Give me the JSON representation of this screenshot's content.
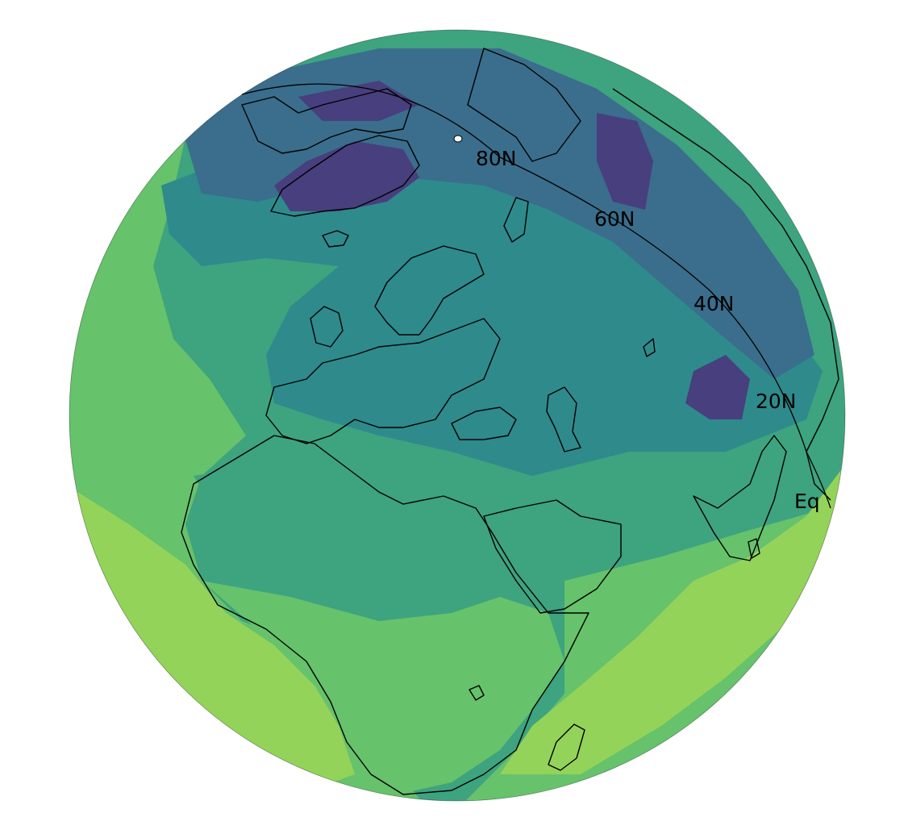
{
  "colors": {
    "very_high": "#483f7e",
    "high": "#3a6e8c",
    "mid_high": "#2f8a8c",
    "mid": "#3ea37f",
    "mid_low": "#4fb673",
    "low": "#66c26b",
    "very_low": "#94d35a",
    "coastline": "#000000",
    "background": "#ffffff"
  },
  "projection": "orthographic",
  "graticule": {
    "meridian_labels": [
      "80N",
      "60N",
      "40N",
      "20N",
      "Eq"
    ]
  }
}
